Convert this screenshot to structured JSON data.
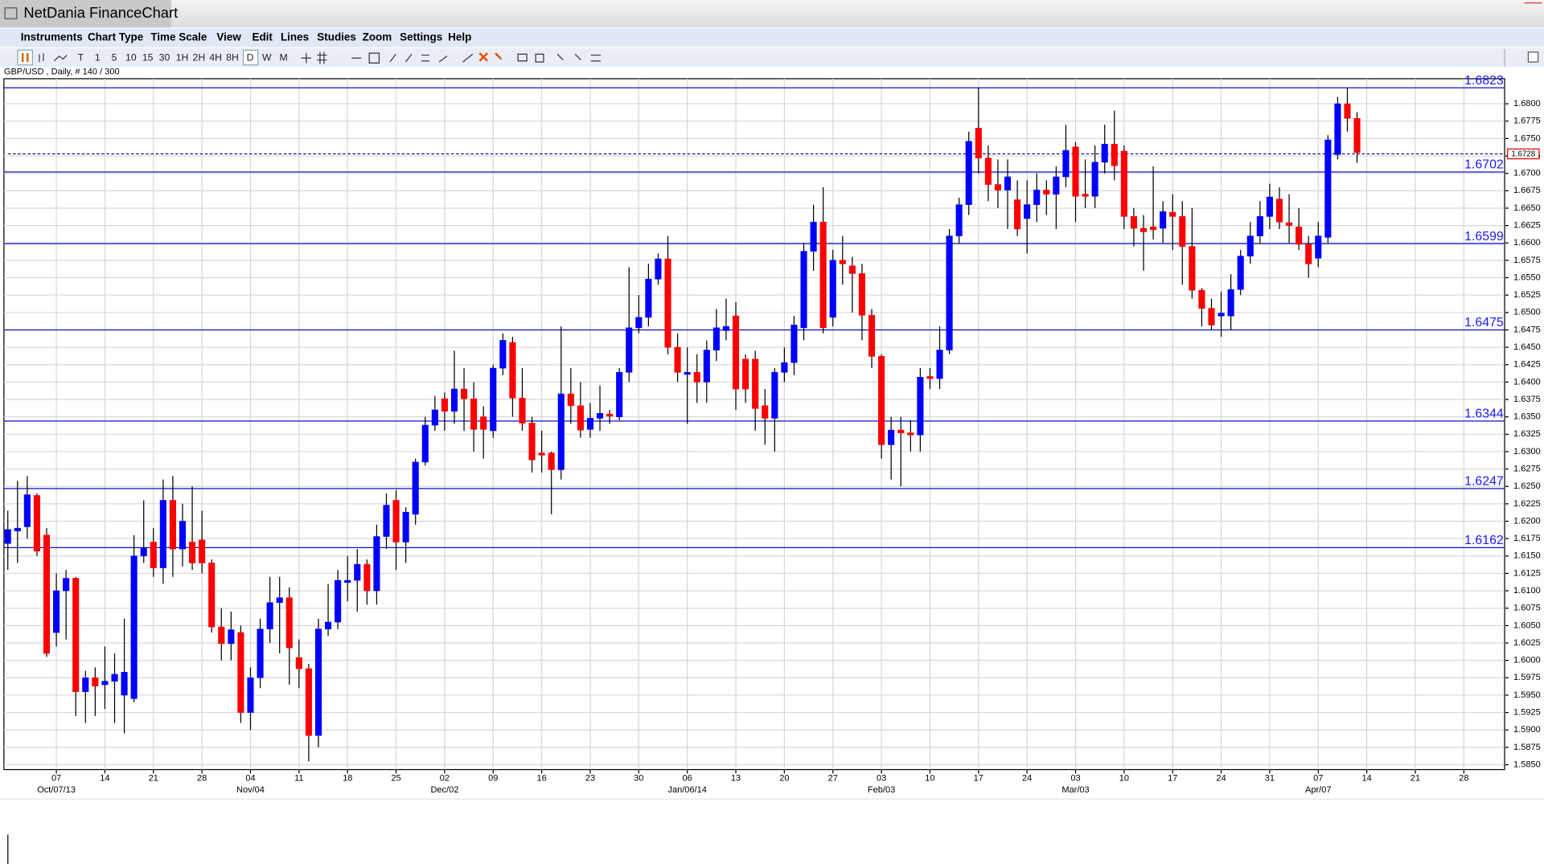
{
  "window_title": "NetDania FinanceChart",
  "menu": [
    "Instruments",
    "Chart Type",
    "Time Scale",
    "View",
    "Edit",
    "Lines",
    "Studies",
    "Zoom",
    "Settings",
    "Help"
  ],
  "toolbar": [
    "T",
    "1",
    "5",
    "10",
    "15",
    "30",
    "1H",
    "2H",
    "4H",
    "8H",
    "D",
    "W",
    "M"
  ],
  "chart_data": {
    "type": "candlestick",
    "title": "GBP/USD , Daily, # 140 / 300",
    "up_color": "#0000ff",
    "down_color": "#ff0000",
    "grid": true,
    "open": [
      1.6168,
      1.6186,
      1.6192,
      1.6237,
      1.618,
      1.604,
      1.61,
      1.6118,
      1.5955,
      1.5975,
      1.5965,
      1.597,
      1.595,
      1.5945,
      1.615,
      1.617,
      1.6133,
      1.623,
      1.616,
      1.617,
      1.6173,
      1.614,
      1.6048,
      1.6024,
      1.604,
      1.5925,
      1.5975,
      1.6045,
      1.6083,
      1.609,
      1.6004,
      1.5988,
      1.5892,
      1.6045,
      1.6055,
      1.6112,
      1.6115,
      1.6138,
      1.61,
      1.6178,
      1.623,
      1.617,
      1.621,
      1.6285,
      1.6338,
      1.6376,
      1.6358,
      1.639,
      1.6376,
      1.635,
      1.633,
      1.642,
      1.6457,
      1.6377,
      1.6341,
      1.6298,
      1.6298,
      1.6274,
      1.6383,
      1.6366,
      1.6332,
      1.6348,
      1.6354,
      1.635,
      1.6414,
      1.6478,
      1.6493,
      1.6548,
      1.6577,
      1.645,
      1.6411,
      1.6414,
      1.64,
      1.6446,
      1.6474,
      1.6495,
      1.6433,
      1.6433,
      1.6366,
      1.6348,
      1.6414,
      1.6428,
      1.6478,
      1.6588,
      1.663,
      1.6493,
      1.6575,
      1.6567,
      1.6556,
      1.6496,
      1.6437,
      1.631,
      1.6331,
      1.6327,
      1.6324,
      1.6408,
      1.6405,
      1.6446,
      1.661,
      1.6655,
      1.6765,
      1.6722,
      1.6684,
      1.6676,
      1.6662,
      1.6635,
      1.6655,
      1.6676,
      1.667,
      1.6695,
      1.6738,
      1.667,
      1.6667,
      1.6716,
      1.6742,
      1.6732,
      1.6638,
      1.6621,
      1.6623,
      1.6621,
      1.6644,
      1.6638,
      1.6595,
      1.6532,
      1.6506,
      1.6495,
      1.6495,
      1.6533,
      1.6581,
      1.661,
      1.6638,
      1.6663,
      1.6629,
      1.6623,
      1.6598,
      1.6578,
      1.6608,
      1.6727,
      1.68,
      1.6779
    ],
    "high": [
      1.6215,
      1.6258,
      1.6265,
      1.624,
      1.619,
      1.6125,
      1.613,
      1.612,
      1.5985,
      1.599,
      1.602,
      1.601,
      1.606,
      1.618,
      1.623,
      1.619,
      1.626,
      1.6265,
      1.6225,
      1.625,
      1.6215,
      1.6145,
      1.6075,
      1.607,
      1.605,
      1.599,
      1.606,
      1.612,
      1.612,
      1.6105,
      1.603,
      1.5995,
      1.606,
      1.611,
      1.613,
      1.615,
      1.616,
      1.6145,
      1.6195,
      1.624,
      1.6245,
      1.622,
      1.629,
      1.635,
      1.638,
      1.6385,
      1.6445,
      1.642,
      1.64,
      1.6365,
      1.6425,
      1.647,
      1.6465,
      1.642,
      1.635,
      1.633,
      1.63,
      1.648,
      1.642,
      1.64,
      1.637,
      1.6395,
      1.636,
      1.642,
      1.6565,
      1.6525,
      1.657,
      1.6585,
      1.661,
      1.647,
      1.645,
      1.644,
      1.646,
      1.6505,
      1.652,
      1.6515,
      1.644,
      1.6445,
      1.639,
      1.642,
      1.645,
      1.6495,
      1.66,
      1.6655,
      1.668,
      1.659,
      1.661,
      1.658,
      1.657,
      1.6505,
      1.644,
      1.635,
      1.635,
      1.6345,
      1.642,
      1.642,
      1.648,
      1.662,
      1.6665,
      1.676,
      1.6823,
      1.674,
      1.672,
      1.672,
      1.669,
      1.669,
      1.67,
      1.669,
      1.671,
      1.677,
      1.6745,
      1.672,
      1.674,
      1.677,
      1.679,
      1.674,
      1.665,
      1.664,
      1.671,
      1.666,
      1.667,
      1.666,
      1.665,
      1.6535,
      1.652,
      1.653,
      1.6555,
      1.659,
      1.663,
      1.666,
      1.6685,
      1.668,
      1.667,
      1.665,
      1.661,
      1.663,
      1.6755,
      1.681,
      1.6823,
      1.6788
    ],
    "low": [
      1.613,
      1.614,
      1.6175,
      1.615,
      1.6005,
      1.602,
      1.603,
      1.592,
      1.591,
      1.592,
      1.593,
      1.591,
      1.5895,
      1.594,
      1.614,
      1.612,
      1.611,
      1.612,
      1.6135,
      1.613,
      1.6125,
      1.604,
      1.6,
      1.6,
      1.591,
      1.59,
      1.596,
      1.6025,
      1.601,
      1.5965,
      1.596,
      1.5855,
      1.5875,
      1.6035,
      1.6045,
      1.6085,
      1.607,
      1.608,
      1.608,
      1.616,
      1.613,
      1.614,
      1.6195,
      1.628,
      1.633,
      1.633,
      1.634,
      1.633,
      1.63,
      1.629,
      1.632,
      1.641,
      1.635,
      1.633,
      1.627,
      1.627,
      1.621,
      1.626,
      1.634,
      1.632,
      1.632,
      1.633,
      1.634,
      1.6345,
      1.64,
      1.647,
      1.648,
      1.654,
      1.644,
      1.64,
      1.634,
      1.637,
      1.637,
      1.643,
      1.646,
      1.636,
      1.637,
      1.633,
      1.631,
      1.63,
      1.64,
      1.641,
      1.646,
      1.656,
      1.647,
      1.648,
      1.654,
      1.65,
      1.646,
      1.642,
      1.629,
      1.626,
      1.625,
      1.63,
      1.63,
      1.639,
      1.639,
      1.644,
      1.66,
      1.664,
      1.67,
      1.666,
      1.665,
      1.662,
      1.661,
      1.6585,
      1.663,
      1.664,
      1.662,
      1.668,
      1.663,
      1.665,
      1.665,
      1.67,
      1.669,
      1.662,
      1.6595,
      1.656,
      1.6605,
      1.66,
      1.659,
      1.654,
      1.652,
      1.648,
      1.6475,
      1.6465,
      1.6475,
      1.6525,
      1.657,
      1.66,
      1.662,
      1.662,
      1.66,
      1.659,
      1.655,
      1.6565,
      1.66,
      1.672,
      1.676,
      1.6715
    ],
    "close": [
      1.6188,
      1.619,
      1.6238,
      1.6157,
      1.601,
      1.61,
      1.6118,
      1.5955,
      1.5975,
      1.5963,
      1.597,
      1.598,
      1.5983,
      1.615,
      1.6162,
      1.6133,
      1.623,
      1.616,
      1.62,
      1.614,
      1.614,
      1.6048,
      1.6024,
      1.6044,
      1.5925,
      1.5975,
      1.6045,
      1.6083,
      1.609,
      1.6018,
      1.5988,
      1.5892,
      1.6045,
      1.6055,
      1.6115,
      1.6115,
      1.6138,
      1.61,
      1.6178,
      1.6223,
      1.617,
      1.6213,
      1.6285,
      1.6338,
      1.636,
      1.6358,
      1.639,
      1.6376,
      1.6332,
      1.6332,
      1.642,
      1.646,
      1.6377,
      1.6341,
      1.6288,
      1.6295,
      1.6274,
      1.6383,
      1.6366,
      1.6331,
      1.6348,
      1.6355,
      1.6351,
      1.6414,
      1.6478,
      1.6493,
      1.6548,
      1.6577,
      1.645,
      1.6414,
      1.6414,
      1.64,
      1.6446,
      1.6478,
      1.648,
      1.639,
      1.639,
      1.6362,
      1.6348,
      1.6414,
      1.6428,
      1.6482,
      1.6588,
      1.663,
      1.6478,
      1.6575,
      1.657,
      1.6556,
      1.6496,
      1.6437,
      1.631,
      1.6331,
      1.6327,
      1.6324,
      1.6407,
      1.6405,
      1.6446,
      1.661,
      1.6655,
      1.6746,
      1.6722,
      1.6684,
      1.6676,
      1.6695,
      1.662,
      1.6655,
      1.6676,
      1.667,
      1.6695,
      1.6733,
      1.6667,
      1.6667,
      1.6716,
      1.6742,
      1.6711,
      1.6638,
      1.6621,
      1.6616,
      1.6619,
      1.6645,
      1.6638,
      1.6595,
      1.6532,
      1.6506,
      1.6482,
      1.6499,
      1.6533,
      1.6581,
      1.661,
      1.6638,
      1.6666,
      1.663,
      1.6625,
      1.6598,
      1.657,
      1.661,
      1.6748,
      1.68,
      1.6779,
      1.673
    ],
    "levels": [
      1.6823,
      1.6702,
      1.6599,
      1.6475,
      1.6344,
      1.6247,
      1.6162
    ],
    "last": 1.6728,
    "ylim": [
      1.5843,
      1.6836
    ],
    "yticks": [
      {
        "value": 1.585,
        "label": "1.5850"
      },
      {
        "value": 1.5875,
        "label": "1.5875"
      },
      {
        "value": 1.59,
        "label": "1.5900"
      },
      {
        "value": 1.5925,
        "label": "1.5925"
      },
      {
        "value": 1.595,
        "label": "1.5950"
      },
      {
        "value": 1.5975,
        "label": "1.5975"
      },
      {
        "value": 1.6,
        "label": "1.6000"
      },
      {
        "value": 1.6025,
        "label": "1.6025"
      },
      {
        "value": 1.605,
        "label": "1.6050"
      },
      {
        "value": 1.6075,
        "label": "1.6075"
      },
      {
        "value": 1.61,
        "label": "1.6100"
      },
      {
        "value": 1.6125,
        "label": "1.6125"
      },
      {
        "value": 1.615,
        "label": "1.6150"
      },
      {
        "value": 1.6175,
        "label": "1.6175"
      },
      {
        "value": 1.62,
        "label": "1.6200"
      },
      {
        "value": 1.6225,
        "label": "1.6225"
      },
      {
        "value": 1.625,
        "label": "1.6250"
      },
      {
        "value": 1.6275,
        "label": "1.6275"
      },
      {
        "value": 1.63,
        "label": "1.6300"
      },
      {
        "value": 1.6325,
        "label": "1.6325"
      },
      {
        "value": 1.635,
        "label": "1.6350"
      },
      {
        "value": 1.6375,
        "label": "1.6375"
      },
      {
        "value": 1.64,
        "label": "1.6400"
      },
      {
        "value": 1.6425,
        "label": "1.6425"
      },
      {
        "value": 1.645,
        "label": "1.6450"
      },
      {
        "value": 1.6475,
        "label": "1.6475"
      },
      {
        "value": 1.65,
        "label": "1.6500"
      },
      {
        "value": 1.6525,
        "label": "1.6525"
      },
      {
        "value": 1.655,
        "label": "1.6550"
      },
      {
        "value": 1.6575,
        "label": "1.6575"
      },
      {
        "value": 1.66,
        "label": "1.6600"
      },
      {
        "value": 1.6625,
        "label": "1.6625"
      },
      {
        "value": 1.665,
        "label": "1.6650"
      },
      {
        "value": 1.6675,
        "label": "1.6675"
      },
      {
        "value": 1.67,
        "label": "1.6700"
      },
      {
        "value": 1.6725,
        "label": "1.6725"
      },
      {
        "value": 1.675,
        "label": "1.6750"
      },
      {
        "value": 1.6775,
        "label": "1.6775"
      },
      {
        "value": 1.68,
        "label": "1.6800"
      }
    ],
    "xlim": [
      -0.4,
      154.2
    ],
    "xticks": [
      {
        "value": 5,
        "label": "07"
      },
      {
        "value": 10,
        "label": "14"
      },
      {
        "value": 15,
        "label": "21"
      },
      {
        "value": 20,
        "label": "28"
      },
      {
        "value": 25,
        "label": "04"
      },
      {
        "value": 30,
        "label": "11"
      },
      {
        "value": 35,
        "label": "18"
      },
      {
        "value": 40,
        "label": "25"
      },
      {
        "value": 45,
        "label": "02"
      },
      {
        "value": 50,
        "label": "09"
      },
      {
        "value": 55,
        "label": "16"
      },
      {
        "value": 60,
        "label": "23"
      },
      {
        "value": 65,
        "label": "30"
      },
      {
        "value": 70,
        "label": "06"
      },
      {
        "value": 75,
        "label": "13"
      },
      {
        "value": 80,
        "label": "20"
      },
      {
        "value": 85,
        "label": "27"
      },
      {
        "value": 90,
        "label": "03"
      },
      {
        "value": 95,
        "label": "10"
      },
      {
        "value": 100,
        "label": "17"
      },
      {
        "value": 105,
        "label": "24"
      },
      {
        "value": 110,
        "label": "03"
      },
      {
        "value": 115,
        "label": "10"
      },
      {
        "value": 120,
        "label": "17"
      },
      {
        "value": 125,
        "label": "24"
      },
      {
        "value": 130,
        "label": "31"
      },
      {
        "value": 135,
        "label": "07"
      },
      {
        "value": 140,
        "label": "14"
      },
      {
        "value": 145,
        "label": "21"
      },
      {
        "value": 150,
        "label": "28"
      }
    ],
    "month_ticks": [
      {
        "value": 5,
        "label": "Oct/07/13"
      },
      {
        "value": 25,
        "label": "Nov/04"
      },
      {
        "value": 45,
        "label": "Dec/02"
      },
      {
        "value": 70,
        "label": "Jan/06/14"
      },
      {
        "value": 90,
        "label": "Feb/03"
      },
      {
        "value": 110,
        "label": "Mar/03"
      },
      {
        "value": 135,
        "label": "Apr/07"
      }
    ]
  }
}
